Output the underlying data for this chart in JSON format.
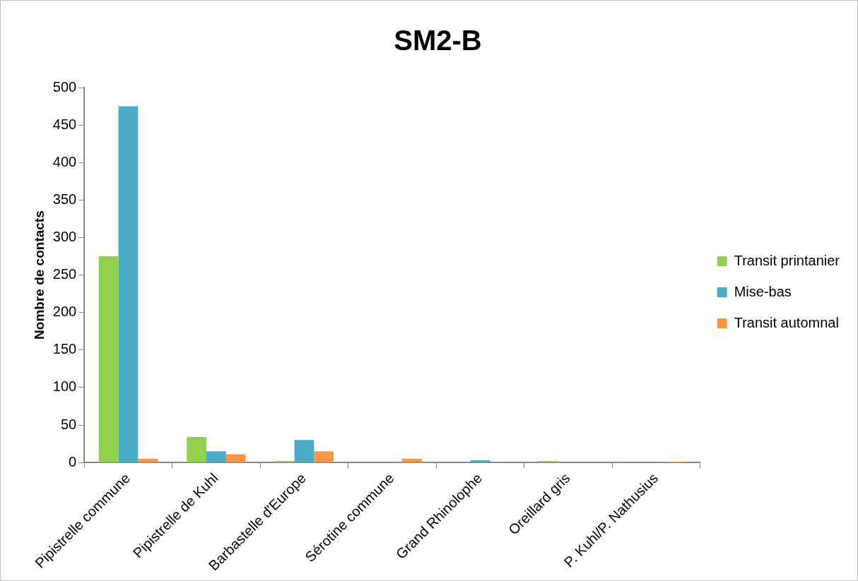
{
  "chart_data": {
    "type": "bar",
    "title": "SM2-B",
    "ylabel": "Nombre de contacts",
    "categories": [
      "Pipistrelle commune",
      "Pipistrelle de Kuhl",
      "Barbastelle d'Europe",
      "Sérotine commune",
      "Grand Rhinolophe",
      "Oreillard gris",
      "P. Kuhl/P. Nathusius"
    ],
    "series": [
      {
        "name": "Transit printanier",
        "color": "#92d050",
        "values": [
          275,
          34,
          2,
          0,
          0,
          2,
          0
        ]
      },
      {
        "name": "Mise-bas",
        "color": "#4bacc6",
        "values": [
          475,
          15,
          30,
          0,
          3,
          0,
          0
        ]
      },
      {
        "name": "Transit automnal",
        "color": "#f79646",
        "values": [
          5,
          11,
          15,
          5,
          0,
          0,
          1
        ]
      }
    ],
    "ylim": [
      0,
      500
    ],
    "yticks": [
      0,
      50,
      100,
      150,
      200,
      250,
      300,
      350,
      400,
      450,
      500
    ],
    "grid": false,
    "legend": "right"
  }
}
